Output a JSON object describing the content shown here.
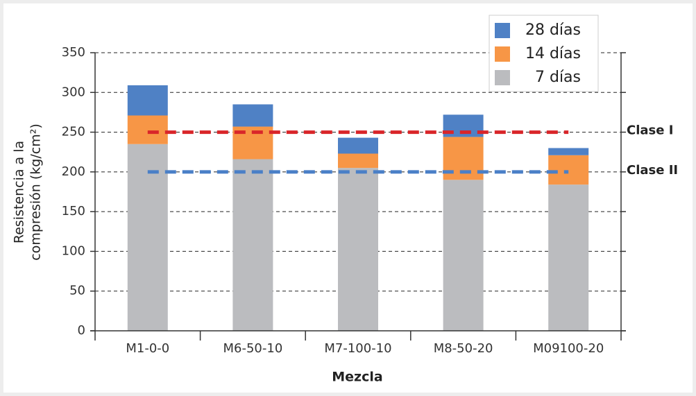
{
  "chart_data": {
    "type": "stacked_bar",
    "categories": [
      "M1-0-0",
      "M6-50-10",
      "M7-100-10",
      "M8-50-20",
      "M09100-20"
    ],
    "series": [
      {
        "name": "7 días",
        "color": "#bbbcbf",
        "values": [
          235,
          216,
          205,
          190,
          184
        ]
      },
      {
        "name": "14 días",
        "color": "#f79646",
        "values": [
          36,
          41,
          18,
          54,
          37
        ]
      },
      {
        "name": "28 días",
        "color": "#4f81c5",
        "values": [
          38,
          28,
          20,
          28,
          9
        ]
      }
    ],
    "reference_lines": [
      {
        "label": "Clase I",
        "value": 250,
        "color": "#d9262a"
      },
      {
        "label": "Clase II",
        "value": 200,
        "color": "#4a7fc7"
      }
    ],
    "xlabel": "Mezcla",
    "ylabel": [
      "Resistencia a la",
      "compresión (kg/cm²)"
    ],
    "ylim": [
      0,
      350
    ],
    "yticks": [
      0,
      50,
      100,
      150,
      200,
      250,
      300,
      350
    ],
    "grid": true,
    "legend": "upper right"
  }
}
